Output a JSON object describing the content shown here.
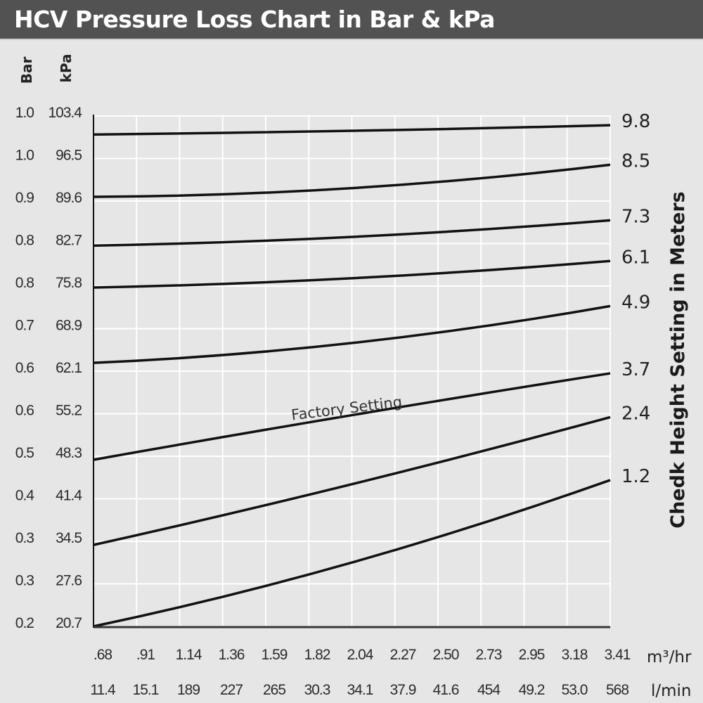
{
  "title": "HCV Pressure Loss Chart in Bar & kPa",
  "chart_data": {
    "type": "line",
    "title": "HCV Pressure Loss Chart in Bar & kPa",
    "y_axis_left": {
      "bar_label": "Bar",
      "kpa_label": "kPa",
      "bar_ticks": [
        "1.0",
        "1.0",
        "0.9",
        "0.8",
        "0.8",
        "0.7",
        "0.6",
        "0.6",
        "0.5",
        "0.4",
        "0.3",
        "0.3",
        "0.2"
      ],
      "kpa_ticks": [
        "103.4",
        "96.5",
        "89.6",
        "82.7",
        "75.8",
        "68.9",
        "62.1",
        "55.2",
        "48.3",
        "41.4",
        "34.5",
        "27.6",
        "20.7"
      ],
      "ylim_kpa": [
        20.7,
        103.4
      ]
    },
    "x_axis": {
      "m3hr_unit": "m³/hr",
      "lmin_unit": "l/min",
      "m3hr_ticks": [
        ".68",
        ".91",
        "1.14",
        "1.36",
        "1.59",
        "1.82",
        "2.04",
        "2.27",
        "2.50",
        "2.73",
        "2.95",
        "3.18",
        "3.41"
      ],
      "lmin_ticks": [
        "11.4",
        "15.1",
        "189",
        "227",
        "265",
        "30.3",
        "34.1",
        "37.9",
        "41.6",
        "454",
        "49.2",
        "53.0",
        "568"
      ],
      "xlim_m3hr": [
        0.68,
        3.41
      ]
    },
    "right_label": "Chedk Height Setting in Meters",
    "annotation": "Factory Setting",
    "grid": true,
    "x": [
      0.68,
      2.04,
      3.41
    ],
    "series": [
      {
        "name": "9.8",
        "values": [
          100.4,
          101.0,
          101.9
        ]
      },
      {
        "name": "8.5",
        "values": [
          90.3,
          91.7,
          95.5
        ]
      },
      {
        "name": "7.3",
        "values": [
          82.4,
          83.8,
          86.5
        ]
      },
      {
        "name": "6.1",
        "values": [
          75.6,
          77.1,
          79.9
        ]
      },
      {
        "name": "4.9",
        "values": [
          63.4,
          66.6,
          72.6
        ]
      },
      {
        "name": "3.7",
        "values": [
          47.7,
          54.9,
          61.7
        ]
      },
      {
        "name": "2.4",
        "values": [
          33.9,
          43.7,
          54.6
        ]
      },
      {
        "name": "1.2",
        "values": [
          20.7,
          31.0,
          44.4
        ]
      }
    ],
    "colors": {
      "background": "#e6e6e7",
      "title_bar": "#525252",
      "grid": "#ffffff",
      "line": "#111111"
    }
  }
}
